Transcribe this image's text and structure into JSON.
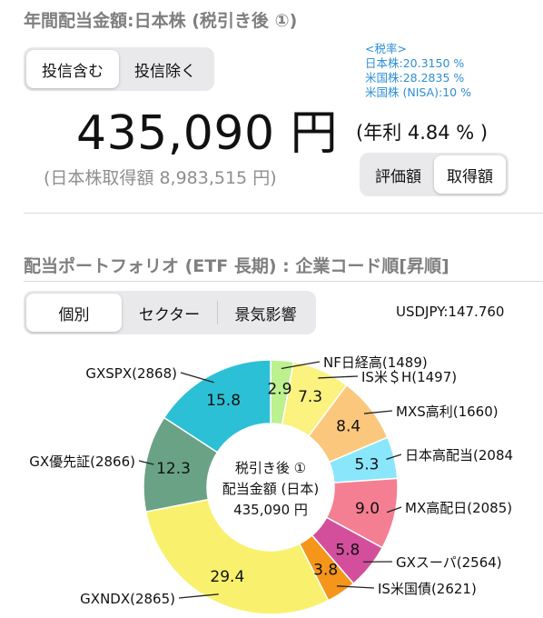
{
  "header": {
    "title": "年間配当金額:日本株 (税引き後 ①)",
    "investment_toggle": {
      "options": [
        "投信含む",
        "投信除く"
      ],
      "selected": 0
    }
  },
  "tax_rates": {
    "heading": "<税率>",
    "lines": [
      "日本株:20.3150 %",
      "米国株:28.2835 %",
      "米国株 (NISA):10 %"
    ]
  },
  "summary": {
    "amount": "435,090 円",
    "yield": "(年利 4.84 % )",
    "acquisition": "(日本株取得額 8,983,515 円)",
    "basis_toggle": {
      "options": [
        "評価額",
        "取得額"
      ],
      "selected": 1
    }
  },
  "portfolio": {
    "title": "配当ポートフォリオ (ETF 長期) : 企業コード順[昇順]",
    "view_toggle": {
      "options": [
        "個別",
        "セクター",
        "景気影響"
      ],
      "selected": 0
    },
    "fx": "USDJPY:147.760",
    "center_lines": [
      "税引き後 ①",
      "配当金額 (日本)",
      "435,090 円"
    ]
  },
  "colors": {
    "tax_text": "#2d8fd6",
    "section_title": "#7f7f7f"
  },
  "chart_data": {
    "type": "pie",
    "variant": "donut",
    "unit": "%",
    "start_angle_deg": 0,
    "direction": "clockwise",
    "slices": [
      {
        "label": "NF日経高(1489)",
        "value": 2.9,
        "value_label": "2.9",
        "color": "#bdf08f"
      },
      {
        "label": "IS米＄H(1497)",
        "value": 7.3,
        "value_label": "7.3",
        "color": "#fbf27f"
      },
      {
        "label": "MXS高利(1660)",
        "value": 8.4,
        "value_label": "8.4",
        "color": "#fbc77d"
      },
      {
        "label": "日本高配当(2084",
        "value": 5.3,
        "value_label": "5.3",
        "color": "#8ae6fb"
      },
      {
        "label": "MX高配日(2085)",
        "value": 9.0,
        "value_label": "9.0",
        "color": "#f57f92"
      },
      {
        "label": "GXスーパ(2564)",
        "value": 5.8,
        "value_label": "5.8",
        "color": "#d34f9c"
      },
      {
        "label": "IS米国債(2621)",
        "value": 3.8,
        "value_label": "3.8",
        "color": "#f59519"
      },
      {
        "label": "GXNDX(2865)",
        "value": 29.4,
        "value_label": "29.4",
        "color": "#f9f16d"
      },
      {
        "label": "GX優先証(2866)",
        "value": 12.3,
        "value_label": "12.3",
        "color": "#6aa285"
      },
      {
        "label": "GXSPX(2868)",
        "value": 15.8,
        "value_label": "15.8",
        "color": "#2cc0d6"
      }
    ]
  }
}
